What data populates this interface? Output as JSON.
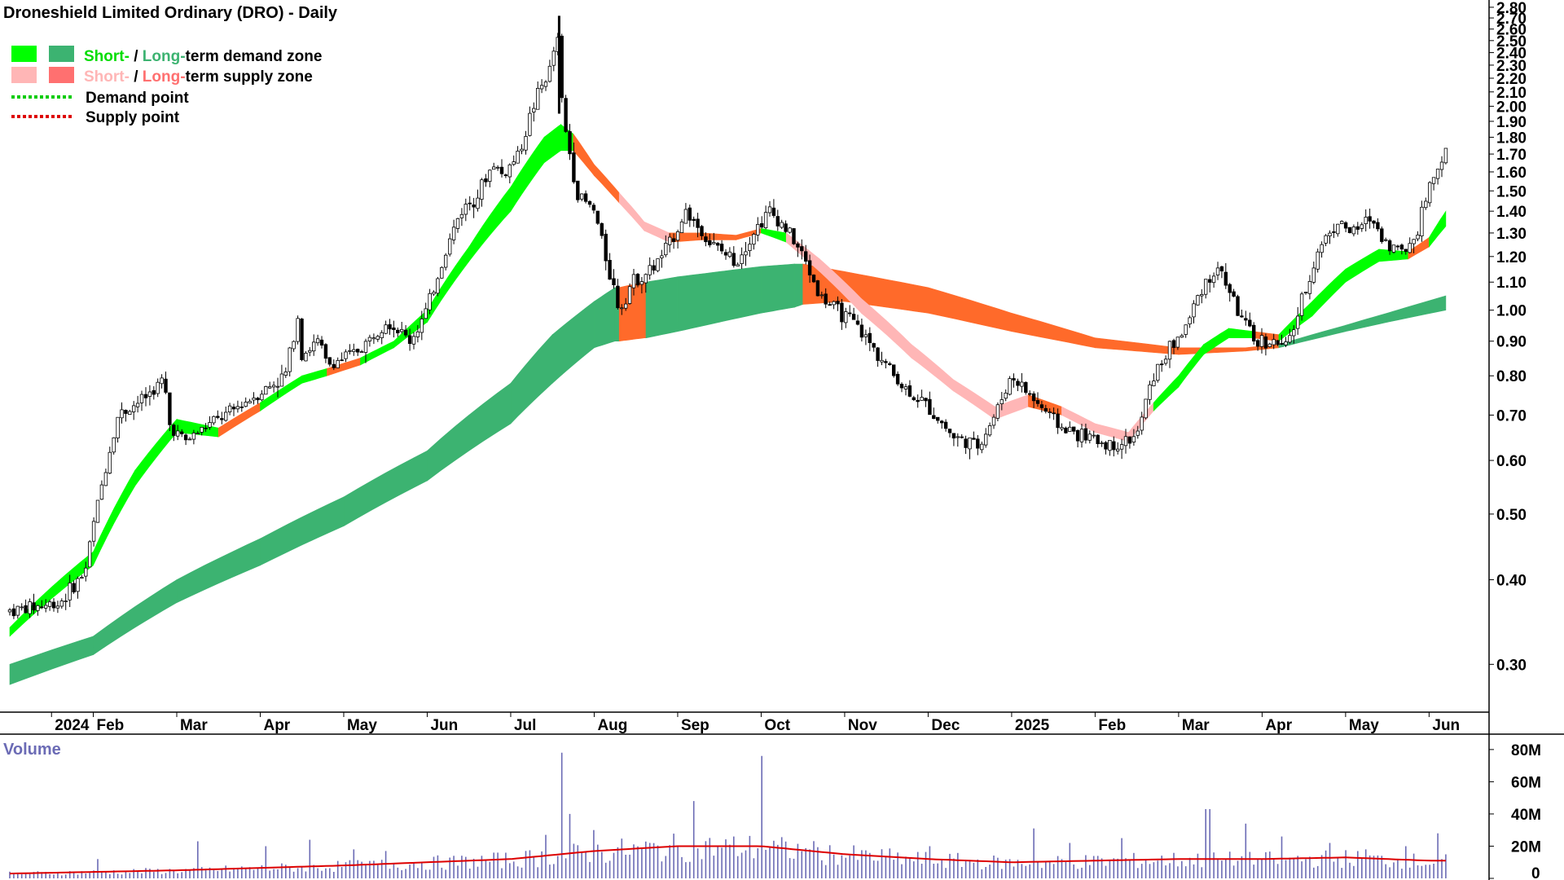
{
  "colors": {
    "short_demand": "#00ff00",
    "long_demand": "#3cb371",
    "short_supply": "#ffb6b6",
    "long_supply": "#ff6a2a",
    "demand_point": "#00cc00",
    "supply_point": "#dd0000",
    "volume_bar": "#6b6bb5",
    "volume_average": "#dd0000",
    "volume_label": "#6b6bb5"
  },
  "chart_data": {
    "type": "candlestick",
    "title": "Droneshield Limited Ordinary (DRO) - Daily",
    "legend": {
      "position": "top-left",
      "demand_zone": {
        "short": "Short-",
        "sep": " / ",
        "long": "Long-",
        "rest": "term demand zone"
      },
      "supply_zone": {
        "short": "Short-",
        "sep": " / ",
        "long": "Long-",
        "rest": "term supply zone"
      },
      "demand_point": "Demand point",
      "supply_point": "Supply point"
    },
    "x_axis": {
      "ticks": [
        {
          "label": "2024",
          "t": 0.5
        },
        {
          "label": "Feb",
          "t": 1
        },
        {
          "label": "Mar",
          "t": 2
        },
        {
          "label": "Apr",
          "t": 3
        },
        {
          "label": "May",
          "t": 4
        },
        {
          "label": "Jun",
          "t": 5
        },
        {
          "label": "Jul",
          "t": 6
        },
        {
          "label": "Aug",
          "t": 7
        },
        {
          "label": "Sep",
          "t": 8
        },
        {
          "label": "Oct",
          "t": 9
        },
        {
          "label": "Nov",
          "t": 10
        },
        {
          "label": "Dec",
          "t": 11
        },
        {
          "label": "2025",
          "t": 12
        },
        {
          "label": "Feb",
          "t": 13
        },
        {
          "label": "Mar",
          "t": 14
        },
        {
          "label": "Apr",
          "t": 15
        },
        {
          "label": "May",
          "t": 16
        },
        {
          "label": "Jun",
          "t": 17
        }
      ],
      "range": [
        0,
        17.25
      ]
    },
    "y_axis": {
      "scale": "log",
      "ylim": [
        0.255,
        2.87
      ],
      "ticks": [
        "0.30",
        "0.40",
        "0.50",
        "0.60",
        "0.70",
        "0.80",
        "0.90",
        "1.00",
        "1.10",
        "1.20",
        "1.30",
        "1.40",
        "1.50",
        "1.60",
        "1.70",
        "1.80",
        "1.90",
        "2.00",
        "2.10",
        "2.20",
        "2.30",
        "2.40",
        "2.50",
        "2.60",
        "2.70",
        "2.80"
      ]
    },
    "price_path": [
      [
        0,
        0.36
      ],
      [
        0.6,
        0.37
      ],
      [
        0.9,
        0.41
      ],
      [
        1.1,
        0.55
      ],
      [
        1.3,
        0.7
      ],
      [
        1.6,
        0.74
      ],
      [
        1.85,
        0.79
      ],
      [
        1.9,
        0.68
      ],
      [
        2.1,
        0.64
      ],
      [
        2.4,
        0.68
      ],
      [
        2.6,
        0.7
      ],
      [
        2.8,
        0.73
      ],
      [
        3.1,
        0.77
      ],
      [
        3.3,
        0.8
      ],
      [
        3.45,
        0.98
      ],
      [
        3.5,
        0.86
      ],
      [
        3.7,
        0.9
      ],
      [
        3.8,
        0.83
      ],
      [
        4.1,
        0.86
      ],
      [
        4.3,
        0.9
      ],
      [
        4.5,
        0.97
      ],
      [
        4.8,
        0.9
      ],
      [
        5.0,
        1.0
      ],
      [
        5.2,
        1.2
      ],
      [
        5.4,
        1.4
      ],
      [
        5.6,
        1.48
      ],
      [
        5.8,
        1.65
      ],
      [
        5.9,
        1.58
      ],
      [
        6.1,
        1.7
      ],
      [
        6.3,
        2.05
      ],
      [
        6.5,
        2.3
      ],
      [
        6.55,
        2.65
      ],
      [
        6.6,
        2.1
      ],
      [
        6.65,
        1.85
      ],
      [
        6.8,
        1.48
      ],
      [
        7.0,
        1.4
      ],
      [
        7.15,
        1.18
      ],
      [
        7.3,
        1.0
      ],
      [
        7.45,
        1.1
      ],
      [
        7.7,
        1.15
      ],
      [
        7.9,
        1.25
      ],
      [
        8.1,
        1.4
      ],
      [
        8.4,
        1.25
      ],
      [
        8.7,
        1.18
      ],
      [
        8.9,
        1.3
      ],
      [
        9.1,
        1.4
      ],
      [
        9.3,
        1.32
      ],
      [
        9.5,
        1.2
      ],
      [
        9.7,
        1.05
      ],
      [
        9.9,
        1.0
      ],
      [
        10.1,
        0.96
      ],
      [
        10.4,
        0.86
      ],
      [
        10.7,
        0.77
      ],
      [
        11.0,
        0.72
      ],
      [
        11.3,
        0.65
      ],
      [
        11.6,
        0.63
      ],
      [
        11.8,
        0.7
      ],
      [
        12.0,
        0.8
      ],
      [
        12.3,
        0.73
      ],
      [
        12.6,
        0.67
      ],
      [
        12.9,
        0.65
      ],
      [
        13.2,
        0.63
      ],
      [
        13.5,
        0.65
      ],
      [
        13.7,
        0.8
      ],
      [
        13.9,
        0.88
      ],
      [
        14.1,
        0.95
      ],
      [
        14.3,
        1.1
      ],
      [
        14.5,
        1.15
      ],
      [
        14.7,
        1.0
      ],
      [
        14.9,
        0.9
      ],
      [
        15.1,
        0.9
      ],
      [
        15.3,
        0.88
      ],
      [
        15.5,
        1.05
      ],
      [
        15.7,
        1.25
      ],
      [
        15.9,
        1.35
      ],
      [
        16.1,
        1.3
      ],
      [
        16.3,
        1.37
      ],
      [
        16.5,
        1.25
      ],
      [
        16.7,
        1.22
      ],
      [
        16.85,
        1.3
      ],
      [
        16.95,
        1.45
      ],
      [
        17.1,
        1.63
      ],
      [
        17.2,
        1.72
      ]
    ],
    "short_term_zone": [
      {
        "t": 0,
        "lo": 0.33,
        "hi": 0.34,
        "state": "demand"
      },
      {
        "t": 1,
        "lo": 0.42,
        "hi": 0.44,
        "state": "demand"
      },
      {
        "t": 1.5,
        "lo": 0.55,
        "hi": 0.58,
        "state": "demand"
      },
      {
        "t": 2,
        "lo": 0.66,
        "hi": 0.69,
        "state": "demand"
      },
      {
        "t": 2.5,
        "lo": 0.65,
        "hi": 0.67,
        "state": "supply"
      },
      {
        "t": 3,
        "lo": 0.71,
        "hi": 0.73,
        "state": "demand"
      },
      {
        "t": 3.5,
        "lo": 0.78,
        "hi": 0.8,
        "state": "demand"
      },
      {
        "t": 3.8,
        "lo": 0.8,
        "hi": 0.82,
        "state": "supply"
      },
      {
        "t": 4.2,
        "lo": 0.83,
        "hi": 0.85,
        "state": "demand"
      },
      {
        "t": 4.6,
        "lo": 0.88,
        "hi": 0.9,
        "state": "demand"
      },
      {
        "t": 5.0,
        "lo": 0.96,
        "hi": 1.0,
        "state": "demand"
      },
      {
        "t": 5.5,
        "lo": 1.18,
        "hi": 1.24,
        "state": "demand"
      },
      {
        "t": 6.0,
        "lo": 1.4,
        "hi": 1.52,
        "state": "demand"
      },
      {
        "t": 6.4,
        "lo": 1.65,
        "hi": 1.8,
        "state": "demand"
      },
      {
        "t": 6.6,
        "lo": 1.72,
        "hi": 1.88,
        "state": "demand"
      },
      {
        "t": 6.75,
        "lo": 1.72,
        "hi": 1.82,
        "state": "supply"
      },
      {
        "t": 7.0,
        "lo": 1.58,
        "hi": 1.64,
        "state": "supply"
      },
      {
        "t": 7.3,
        "lo": 1.44,
        "hi": 1.49,
        "state": "short_supply"
      },
      {
        "t": 7.6,
        "lo": 1.31,
        "hi": 1.35,
        "state": "short_supply"
      },
      {
        "t": 7.9,
        "lo": 1.26,
        "hi": 1.3,
        "state": "supply"
      },
      {
        "t": 8.3,
        "lo": 1.27,
        "hi": 1.3,
        "state": "supply"
      },
      {
        "t": 8.7,
        "lo": 1.27,
        "hi": 1.29,
        "state": "supply"
      },
      {
        "t": 9.0,
        "lo": 1.3,
        "hi": 1.32,
        "state": "demand"
      },
      {
        "t": 9.3,
        "lo": 1.26,
        "hi": 1.3,
        "state": "short_supply"
      },
      {
        "t": 9.7,
        "lo": 1.14,
        "hi": 1.19,
        "state": "short_supply"
      },
      {
        "t": 10.2,
        "lo": 0.99,
        "hi": 1.04,
        "state": "short_supply"
      },
      {
        "t": 10.8,
        "lo": 0.85,
        "hi": 0.89,
        "state": "short_supply"
      },
      {
        "t": 11.3,
        "lo": 0.76,
        "hi": 0.79,
        "state": "short_supply"
      },
      {
        "t": 11.8,
        "lo": 0.69,
        "hi": 0.72,
        "state": "short_supply"
      },
      {
        "t": 12.2,
        "lo": 0.72,
        "hi": 0.75,
        "state": "supply"
      },
      {
        "t": 12.6,
        "lo": 0.7,
        "hi": 0.72,
        "state": "short_supply"
      },
      {
        "t": 13.0,
        "lo": 0.66,
        "hi": 0.68,
        "state": "short_supply"
      },
      {
        "t": 13.4,
        "lo": 0.64,
        "hi": 0.66,
        "state": "short_supply"
      },
      {
        "t": 13.7,
        "lo": 0.71,
        "hi": 0.73,
        "state": "demand"
      },
      {
        "t": 14.0,
        "lo": 0.77,
        "hi": 0.8,
        "state": "demand"
      },
      {
        "t": 14.3,
        "lo": 0.86,
        "hi": 0.89,
        "state": "demand"
      },
      {
        "t": 14.6,
        "lo": 0.91,
        "hi": 0.94,
        "state": "demand"
      },
      {
        "t": 14.9,
        "lo": 0.91,
        "hi": 0.93,
        "state": "supply"
      },
      {
        "t": 15.2,
        "lo": 0.9,
        "hi": 0.92,
        "state": "demand"
      },
      {
        "t": 15.6,
        "lo": 0.98,
        "hi": 1.03,
        "state": "demand"
      },
      {
        "t": 16.0,
        "lo": 1.1,
        "hi": 1.15,
        "state": "demand"
      },
      {
        "t": 16.4,
        "lo": 1.18,
        "hi": 1.23,
        "state": "demand"
      },
      {
        "t": 16.75,
        "lo": 1.19,
        "hi": 1.22,
        "state": "supply"
      },
      {
        "t": 17.0,
        "lo": 1.24,
        "hi": 1.28,
        "state": "demand"
      },
      {
        "t": 17.2,
        "lo": 1.33,
        "hi": 1.4,
        "state": "demand"
      }
    ],
    "long_term_zone": [
      {
        "t": 0,
        "lo": 0.28,
        "hi": 0.3,
        "state": "demand"
      },
      {
        "t": 1,
        "lo": 0.31,
        "hi": 0.33,
        "state": "demand"
      },
      {
        "t": 2,
        "lo": 0.37,
        "hi": 0.4,
        "state": "demand"
      },
      {
        "t": 3,
        "lo": 0.42,
        "hi": 0.46,
        "state": "demand"
      },
      {
        "t": 4,
        "lo": 0.48,
        "hi": 0.53,
        "state": "demand"
      },
      {
        "t": 5,
        "lo": 0.56,
        "hi": 0.62,
        "state": "demand"
      },
      {
        "t": 6,
        "lo": 0.68,
        "hi": 0.78,
        "state": "demand"
      },
      {
        "t": 6.5,
        "lo": 0.78,
        "hi": 0.92,
        "state": "demand"
      },
      {
        "t": 7.0,
        "lo": 0.88,
        "hi": 1.03,
        "state": "demand"
      },
      {
        "t": 7.25,
        "lo": 0.9,
        "hi": 1.08,
        "state": "demand"
      },
      {
        "t": 7.3,
        "lo": 0.9,
        "hi": 1.08,
        "state": "supply"
      },
      {
        "t": 7.6,
        "lo": 0.91,
        "hi": 1.1,
        "state": "supply"
      },
      {
        "t": 7.62,
        "lo": 0.91,
        "hi": 1.1,
        "state": "demand"
      },
      {
        "t": 8.0,
        "lo": 0.93,
        "hi": 1.12,
        "state": "demand"
      },
      {
        "t": 8.5,
        "lo": 0.96,
        "hi": 1.14,
        "state": "demand"
      },
      {
        "t": 9.0,
        "lo": 0.99,
        "hi": 1.16,
        "state": "demand"
      },
      {
        "t": 9.4,
        "lo": 1.01,
        "hi": 1.17,
        "state": "demand"
      },
      {
        "t": 9.5,
        "lo": 1.02,
        "hi": 1.17,
        "state": "supply"
      },
      {
        "t": 10.0,
        "lo": 1.03,
        "hi": 1.14,
        "state": "supply"
      },
      {
        "t": 11.0,
        "lo": 0.99,
        "hi": 1.08,
        "state": "supply"
      },
      {
        "t": 12.0,
        "lo": 0.93,
        "hi": 0.99,
        "state": "supply"
      },
      {
        "t": 13.0,
        "lo": 0.88,
        "hi": 0.91,
        "state": "supply"
      },
      {
        "t": 14.0,
        "lo": 0.86,
        "hi": 0.88,
        "state": "supply"
      },
      {
        "t": 14.8,
        "lo": 0.87,
        "hi": 0.88,
        "state": "supply"
      },
      {
        "t": 15.2,
        "lo": 0.88,
        "hi": 0.89,
        "state": "demand"
      },
      {
        "t": 16.0,
        "lo": 0.93,
        "hi": 0.95,
        "state": "demand"
      },
      {
        "t": 16.5,
        "lo": 0.96,
        "hi": 0.99,
        "state": "demand"
      },
      {
        "t": 17.2,
        "lo": 1.0,
        "hi": 1.05,
        "state": "demand"
      }
    ],
    "volume": {
      "label": "Volume",
      "ylim": [
        0,
        85
      ],
      "ticks": [
        "0",
        "20M",
        "40M",
        "60M",
        "80M"
      ],
      "average": [
        [
          0,
          3
        ],
        [
          2,
          5
        ],
        [
          4,
          8
        ],
        [
          6,
          12
        ],
        [
          7,
          17
        ],
        [
          8,
          20
        ],
        [
          9,
          20
        ],
        [
          10,
          15
        ],
        [
          11,
          12
        ],
        [
          12,
          10
        ],
        [
          13,
          11
        ],
        [
          14,
          12
        ],
        [
          15,
          12
        ],
        [
          16,
          13
        ],
        [
          17,
          11
        ],
        [
          17.2,
          11
        ]
      ],
      "peaks": [
        [
          1.05,
          12
        ],
        [
          2.25,
          23
        ],
        [
          3.05,
          20
        ],
        [
          3.6,
          24
        ],
        [
          4.1,
          18
        ],
        [
          4.5,
          17
        ],
        [
          5.3,
          14
        ],
        [
          6.4,
          27
        ],
        [
          6.6,
          78
        ],
        [
          6.72,
          40
        ],
        [
          7.0,
          30
        ],
        [
          8.2,
          48
        ],
        [
          9.0,
          76
        ],
        [
          9.6,
          18
        ],
        [
          11.0,
          20
        ],
        [
          12.25,
          31
        ],
        [
          12.7,
          22
        ],
        [
          13.3,
          25
        ],
        [
          14.35,
          43
        ],
        [
          14.8,
          34
        ],
        [
          15.25,
          26
        ],
        [
          15.8,
          22
        ],
        [
          16.25,
          18
        ],
        [
          16.7,
          20
        ],
        [
          17.1,
          28
        ]
      ]
    }
  }
}
